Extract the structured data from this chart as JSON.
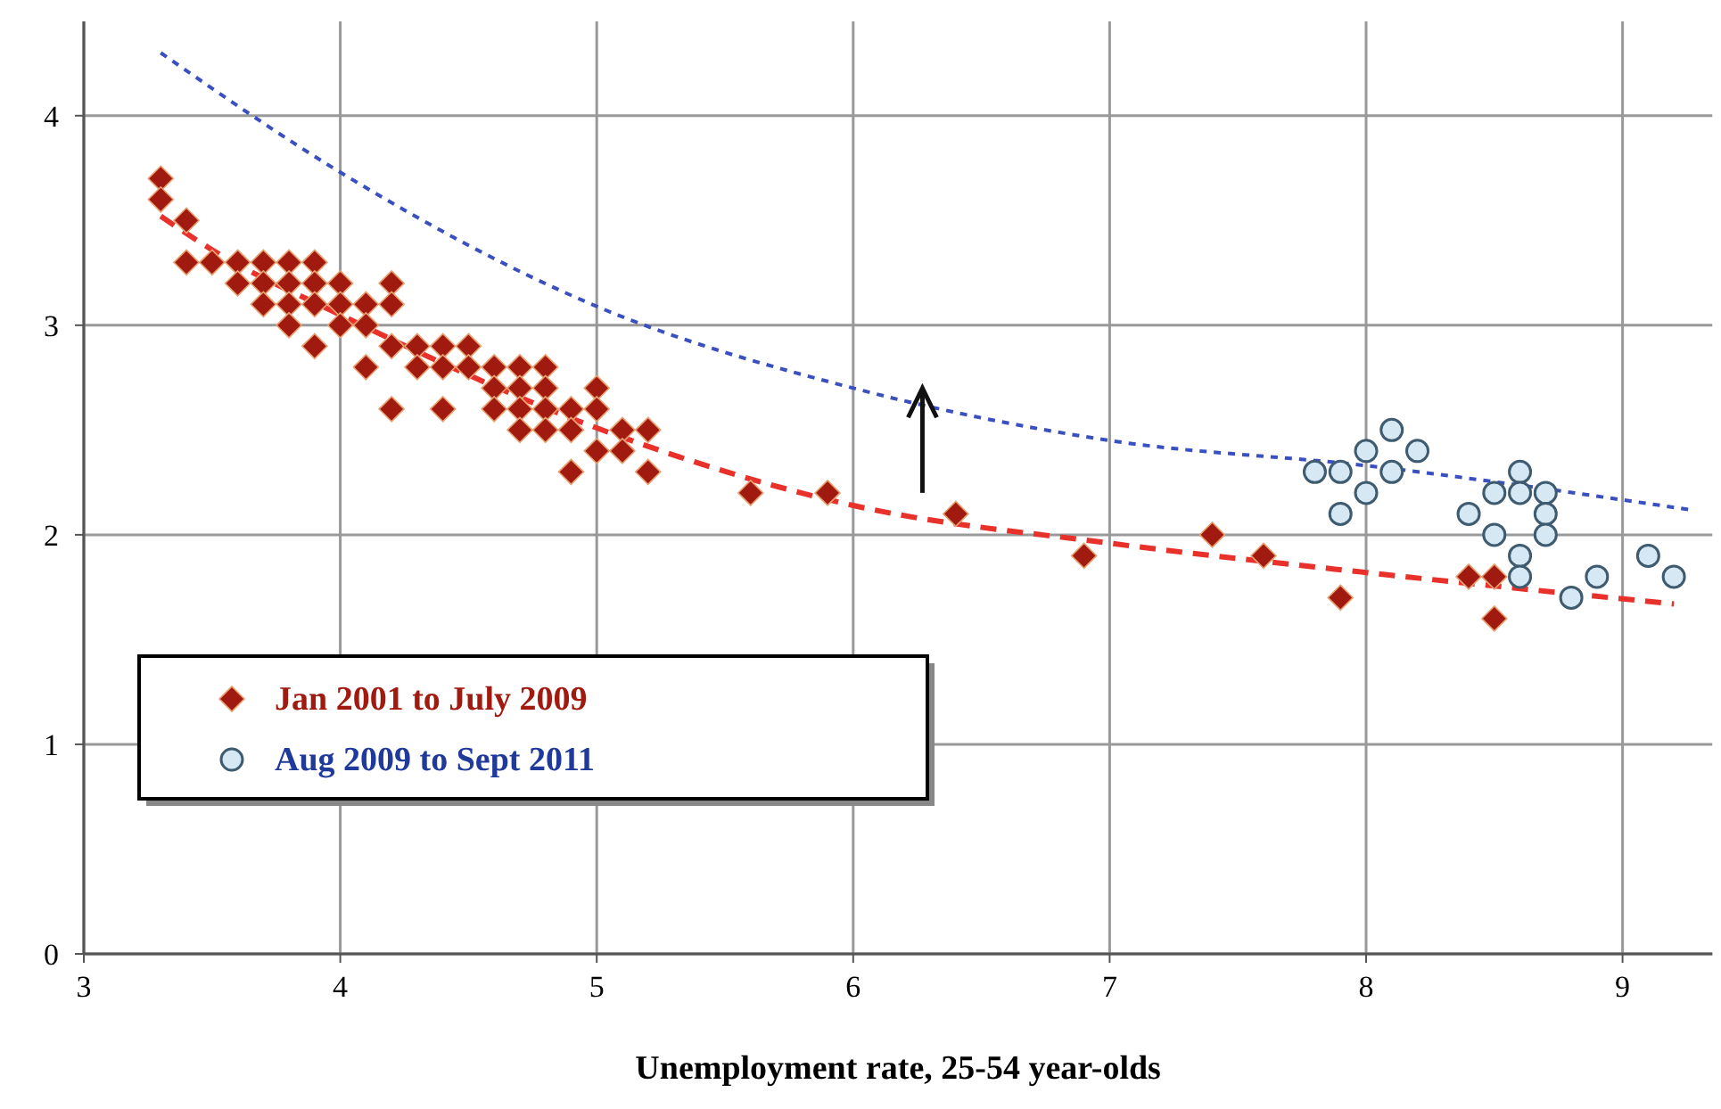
{
  "chart_data": {
    "type": "scatter",
    "xlabel": "Unemployment rate, 25-54 year-olds",
    "xlim": [
      3,
      9.35
    ],
    "ylim": [
      0,
      4.45
    ],
    "xticks": [
      3,
      4,
      5,
      6,
      7,
      8,
      9
    ],
    "yticks": [
      0,
      1,
      2,
      3,
      4
    ],
    "grid": true,
    "legend": "left",
    "series": [
      {
        "name": "Jan 2001 to July 2009",
        "color": "#a01a10",
        "marker": "diamond",
        "x": [
          3.3,
          3.3,
          3.4,
          3.4,
          3.5,
          3.6,
          3.7,
          3.8,
          3.9,
          3.6,
          3.7,
          3.8,
          3.9,
          4.0,
          4.2,
          3.7,
          3.8,
          3.9,
          4.0,
          4.1,
          4.2,
          3.8,
          4.0,
          4.1,
          3.9,
          4.2,
          4.3,
          4.4,
          4.5,
          4.1,
          4.3,
          4.4,
          4.5,
          4.6,
          4.7,
          4.8,
          4.6,
          4.7,
          4.8,
          5.0,
          4.2,
          4.4,
          4.6,
          4.7,
          4.8,
          4.9,
          5.0,
          4.7,
          4.8,
          4.9,
          5.1,
          5.2,
          5.0,
          5.1,
          4.9,
          5.2,
          5.6,
          5.9,
          6.4,
          6.9,
          7.4,
          7.6,
          7.9,
          8.4,
          8.5,
          8.5
        ],
        "values": [
          3.7,
          3.6,
          3.5,
          3.3,
          3.3,
          3.3,
          3.3,
          3.3,
          3.3,
          3.2,
          3.2,
          3.2,
          3.2,
          3.2,
          3.2,
          3.1,
          3.1,
          3.1,
          3.1,
          3.1,
          3.1,
          3.0,
          3.0,
          3.0,
          2.9,
          2.9,
          2.9,
          2.9,
          2.9,
          2.8,
          2.8,
          2.8,
          2.8,
          2.8,
          2.8,
          2.8,
          2.7,
          2.7,
          2.7,
          2.7,
          2.6,
          2.6,
          2.6,
          2.6,
          2.6,
          2.6,
          2.6,
          2.5,
          2.5,
          2.5,
          2.5,
          2.5,
          2.4,
          2.4,
          2.3,
          2.3,
          2.2,
          2.2,
          2.1,
          1.9,
          2.0,
          1.9,
          1.7,
          1.8,
          1.8,
          1.6
        ]
      },
      {
        "name": "Aug 2009 to Sept 2011",
        "color": "#d6e8f4",
        "marker": "circle",
        "x": [
          7.8,
          7.9,
          8.0,
          8.1,
          8.2,
          8.1,
          8.0,
          7.9,
          8.6,
          8.5,
          8.6,
          8.7,
          8.4,
          8.7,
          8.5,
          8.7,
          8.6,
          8.6,
          8.8,
          8.9,
          9.1,
          9.2
        ],
        "values": [
          2.3,
          2.3,
          2.4,
          2.5,
          2.4,
          2.3,
          2.2,
          2.1,
          2.3,
          2.2,
          2.2,
          2.2,
          2.1,
          2.1,
          2.0,
          2.0,
          1.9,
          1.8,
          1.7,
          1.8,
          1.9,
          1.8
        ]
      },
      {
        "type": "line",
        "color": "#e8312a",
        "line_style": "dashed",
        "marker": "none",
        "x": [
          3.3,
          3.5,
          4,
          5,
          6,
          7,
          8,
          9.2
        ],
        "values": [
          3.52,
          3.36,
          3.05,
          2.51,
          2.14,
          1.96,
          1.82,
          1.67
        ]
      },
      {
        "type": "line",
        "color": "#3a4fc0",
        "line_style": "dotted",
        "marker": "none",
        "x": [
          3.3,
          4,
          5,
          6,
          7,
          8,
          9.26
        ],
        "values": [
          4.3,
          3.73,
          3.09,
          2.7,
          2.45,
          2.33,
          2.12
        ]
      }
    ]
  }
}
